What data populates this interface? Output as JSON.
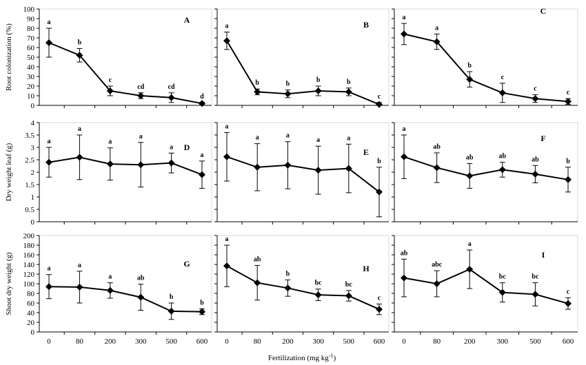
{
  "figure": {
    "x_axis_label": "Fertilization (mg kg",
    "x_axis_label_sup": "-1",
    "x_axis_label_end": ")"
  },
  "chart_data": [
    {
      "type": "line",
      "panel": "A",
      "categories": [
        "0",
        "80",
        "200",
        "300",
        "500",
        "600"
      ],
      "values": [
        65,
        52,
        15,
        10,
        8,
        2
      ],
      "errors": [
        15,
        7,
        5,
        3,
        5,
        1
      ],
      "letters": [
        "a",
        "b",
        "c",
        "cd",
        "cd",
        "d"
      ],
      "ylabel": "Root colonization (%)",
      "ylim": [
        0,
        100
      ],
      "yticks": [
        0,
        10,
        20,
        30,
        40,
        50,
        60,
        70,
        80,
        90,
        100
      ]
    },
    {
      "type": "line",
      "panel": "B",
      "categories": [
        "0",
        "80",
        "200",
        "300",
        "500",
        "600"
      ],
      "values": [
        67,
        14,
        12,
        15,
        14,
        1
      ],
      "errors": [
        9,
        3,
        4,
        5,
        4,
        2
      ],
      "letters": [
        "a",
        "b",
        "b",
        "b",
        "b",
        "c"
      ],
      "ylabel": "",
      "ylim": [
        0,
        100
      ],
      "yticks": [
        0,
        10,
        20,
        30,
        40,
        50,
        60,
        70,
        80,
        90,
        100
      ]
    },
    {
      "type": "line",
      "panel": "C",
      "categories": [
        "0",
        "80",
        "200",
        "300",
        "500",
        "600"
      ],
      "values": [
        74,
        66,
        27,
        13,
        7,
        4
      ],
      "errors": [
        11,
        8,
        8,
        10,
        4,
        3
      ],
      "letters": [
        "a",
        "a",
        "b",
        "c",
        "c",
        "c"
      ],
      "ylabel": "",
      "ylim": [
        0,
        100
      ],
      "yticks": [
        0,
        10,
        20,
        30,
        40,
        50,
        60,
        70,
        80,
        90,
        100
      ]
    },
    {
      "type": "line",
      "panel": "D",
      "categories": [
        "0",
        "80",
        "200",
        "300",
        "500",
        "600"
      ],
      "values": [
        2.4,
        2.6,
        2.33,
        2.3,
        2.37,
        1.9
      ],
      "errors": [
        0.6,
        0.9,
        0.65,
        0.9,
        0.4,
        0.55
      ],
      "letters": [
        "a",
        "a",
        "a",
        "a",
        "a",
        "a"
      ],
      "ylabel": "Dry weight leaf (g)",
      "ylim": [
        0,
        4
      ],
      "yticks": [
        0,
        0.5,
        1,
        1.5,
        2,
        2.5,
        3,
        3.5,
        4
      ]
    },
    {
      "type": "line",
      "panel": "E",
      "categories": [
        "0",
        "80",
        "200",
        "300",
        "500",
        "600"
      ],
      "values": [
        2.62,
        2.2,
        2.28,
        2.08,
        2.15,
        1.2
      ],
      "errors": [
        0.98,
        0.95,
        0.95,
        0.97,
        0.98,
        1.0
      ],
      "letters": [
        "a",
        "a",
        "a",
        "a",
        "a",
        "b"
      ],
      "ylabel": "",
      "ylim": [
        0,
        4
      ],
      "yticks": [
        0,
        0.5,
        1,
        1.5,
        2,
        2.5,
        3,
        3.5,
        4
      ]
    },
    {
      "type": "line",
      "panel": "F",
      "categories": [
        "0",
        "80",
        "200",
        "300",
        "500",
        "600"
      ],
      "values": [
        2.62,
        2.18,
        1.85,
        2.1,
        1.92,
        1.7
      ],
      "errors": [
        0.88,
        0.6,
        0.5,
        0.3,
        0.35,
        0.5
      ],
      "letters": [
        "a",
        "ab",
        "ab",
        "ab",
        "ab",
        "b"
      ],
      "ylabel": "",
      "ylim": [
        0,
        4
      ],
      "yticks": [
        0,
        0.5,
        1,
        1.5,
        2,
        2.5,
        3,
        3.5,
        4
      ]
    },
    {
      "type": "line",
      "panel": "G",
      "categories": [
        "0",
        "80",
        "200",
        "300",
        "500",
        "600"
      ],
      "values": [
        94,
        93,
        86,
        72,
        43,
        42
      ],
      "errors": [
        25,
        33,
        16,
        27,
        17,
        6
      ],
      "letters": [
        "a",
        "a",
        "a",
        "ab",
        "b",
        "b"
      ],
      "ylabel": "Shoot dry weight (g)",
      "ylim": [
        0,
        200
      ],
      "yticks": [
        0,
        20,
        40,
        60,
        80,
        100,
        120,
        140,
        160,
        180,
        200
      ]
    },
    {
      "type": "line",
      "panel": "H",
      "categories": [
        "0",
        "80",
        "200",
        "300",
        "500",
        "600"
      ],
      "values": [
        137,
        102,
        91,
        77,
        75,
        47
      ],
      "errors": [
        43,
        36,
        17,
        12,
        11,
        11
      ],
      "letters": [
        "a",
        "ab",
        "b",
        "bc",
        "bc",
        "c"
      ],
      "ylabel": "",
      "ylim": [
        0,
        200
      ],
      "yticks": [
        0,
        20,
        40,
        60,
        80,
        100,
        120,
        140,
        160,
        180,
        200
      ]
    },
    {
      "type": "line",
      "panel": "I",
      "categories": [
        "0",
        "80",
        "200",
        "300",
        "500",
        "600"
      ],
      "values": [
        112,
        100,
        130,
        82,
        78,
        59
      ],
      "errors": [
        39,
        27,
        40,
        20,
        24,
        12
      ],
      "letters": [
        "ab",
        "abc",
        "a",
        "bc",
        "bc",
        "c"
      ],
      "ylabel": "",
      "ylim": [
        0,
        200
      ],
      "yticks": [
        0,
        20,
        40,
        60,
        80,
        100,
        120,
        140,
        160,
        180,
        200
      ]
    }
  ]
}
